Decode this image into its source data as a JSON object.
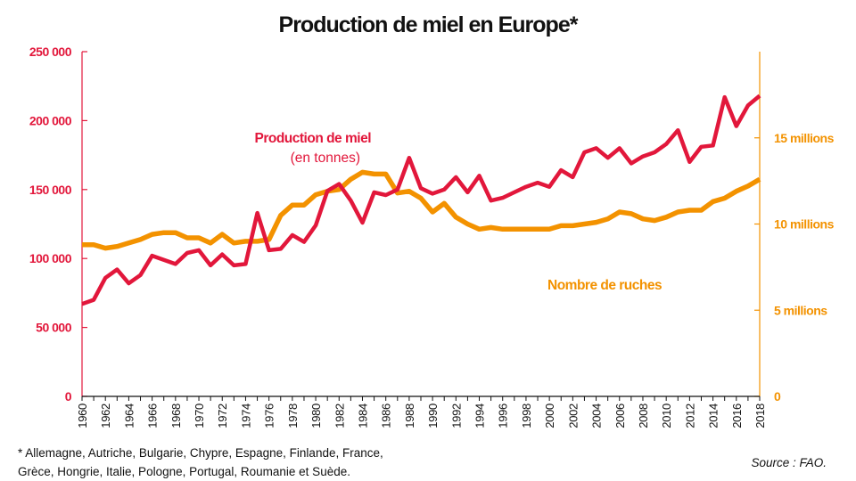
{
  "chart_data": {
    "type": "line",
    "title": "Production de miel en Europe*",
    "x": [
      1960,
      1961,
      1962,
      1963,
      1964,
      1965,
      1966,
      1967,
      1968,
      1969,
      1970,
      1971,
      1972,
      1973,
      1974,
      1975,
      1976,
      1977,
      1978,
      1979,
      1980,
      1981,
      1982,
      1983,
      1984,
      1985,
      1986,
      1987,
      1988,
      1989,
      1990,
      1991,
      1992,
      1993,
      1994,
      1995,
      1996,
      1997,
      1998,
      1999,
      2000,
      2001,
      2002,
      2003,
      2004,
      2005,
      2006,
      2007,
      2008,
      2009,
      2010,
      2011,
      2012,
      2013,
      2014,
      2015,
      2016,
      2017,
      2018
    ],
    "x_ticks": [
      "1960",
      "1962",
      "1964",
      "1966",
      "1968",
      "1970",
      "1972",
      "1974",
      "1976",
      "1978",
      "1980",
      "1982",
      "1984",
      "1986",
      "1988",
      "1990",
      "1992",
      "1994",
      "1996",
      "1998",
      "2000",
      "2002",
      "2004",
      "2006",
      "2008",
      "2010",
      "2012",
      "2014",
      "2016",
      "2018"
    ],
    "xlim": [
      1960,
      2018
    ],
    "series": [
      {
        "name": "Production de miel",
        "sublabel": "(en tonnes)",
        "axis": "left",
        "color": "#e2173b",
        "values": [
          67000,
          70000,
          86000,
          92000,
          82000,
          88000,
          102000,
          99000,
          96000,
          104000,
          106000,
          95000,
          103000,
          95000,
          96000,
          133000,
          106000,
          107000,
          117000,
          112000,
          124000,
          149000,
          154000,
          142000,
          126000,
          148000,
          146000,
          150000,
          173000,
          151000,
          147000,
          150000,
          159000,
          148000,
          160000,
          142000,
          144000,
          148000,
          152000,
          155000,
          152000,
          164000,
          159000,
          177000,
          180000,
          173000,
          180000,
          169000,
          174000,
          177000,
          183000,
          193000,
          170000,
          181000,
          182000,
          217000,
          196000,
          211000,
          218000
        ]
      },
      {
        "name": "Nombre de ruches",
        "axis": "right",
        "color": "#f39200",
        "values": [
          8.8,
          8.8,
          8.6,
          8.7,
          8.9,
          9.1,
          9.4,
          9.5,
          9.5,
          9.2,
          9.2,
          8.9,
          9.4,
          8.9,
          9.0,
          9.0,
          9.1,
          10.5,
          11.1,
          11.1,
          11.7,
          11.9,
          12.0,
          12.6,
          13.0,
          12.9,
          12.9,
          11.8,
          11.9,
          11.5,
          10.7,
          11.2,
          10.4,
          10.0,
          9.7,
          9.8,
          9.7,
          9.7,
          9.7,
          9.7,
          9.7,
          9.9,
          9.9,
          10.0,
          10.1,
          10.3,
          10.7,
          10.6,
          10.3,
          10.2,
          10.4,
          10.7,
          10.8,
          10.8,
          11.3,
          11.5,
          11.9,
          12.2,
          12.6
        ]
      }
    ],
    "y_left": {
      "ylim": [
        0,
        250000
      ],
      "ticks": [
        "0",
        "50 000",
        "100 000",
        "150 000",
        "200 000",
        "250 000"
      ],
      "color": "#e2173b"
    },
    "y_right": {
      "ylim": [
        0,
        20
      ],
      "tick_values": [
        0,
        5,
        10,
        15
      ],
      "ticks": [
        "0",
        "5 millions",
        "10 millions",
        "15 millions"
      ],
      "color": "#f39200"
    },
    "grid": false,
    "legend": "inline labels"
  },
  "footnote": {
    "line1": "* Allemagne, Autriche, Bulgarie, Chypre, Espagne, Finlande, France,",
    "line2": "Grèce, Hongrie, Italie, Pologne, Portugal, Roumanie et Suède."
  },
  "source": "Source : FAO."
}
